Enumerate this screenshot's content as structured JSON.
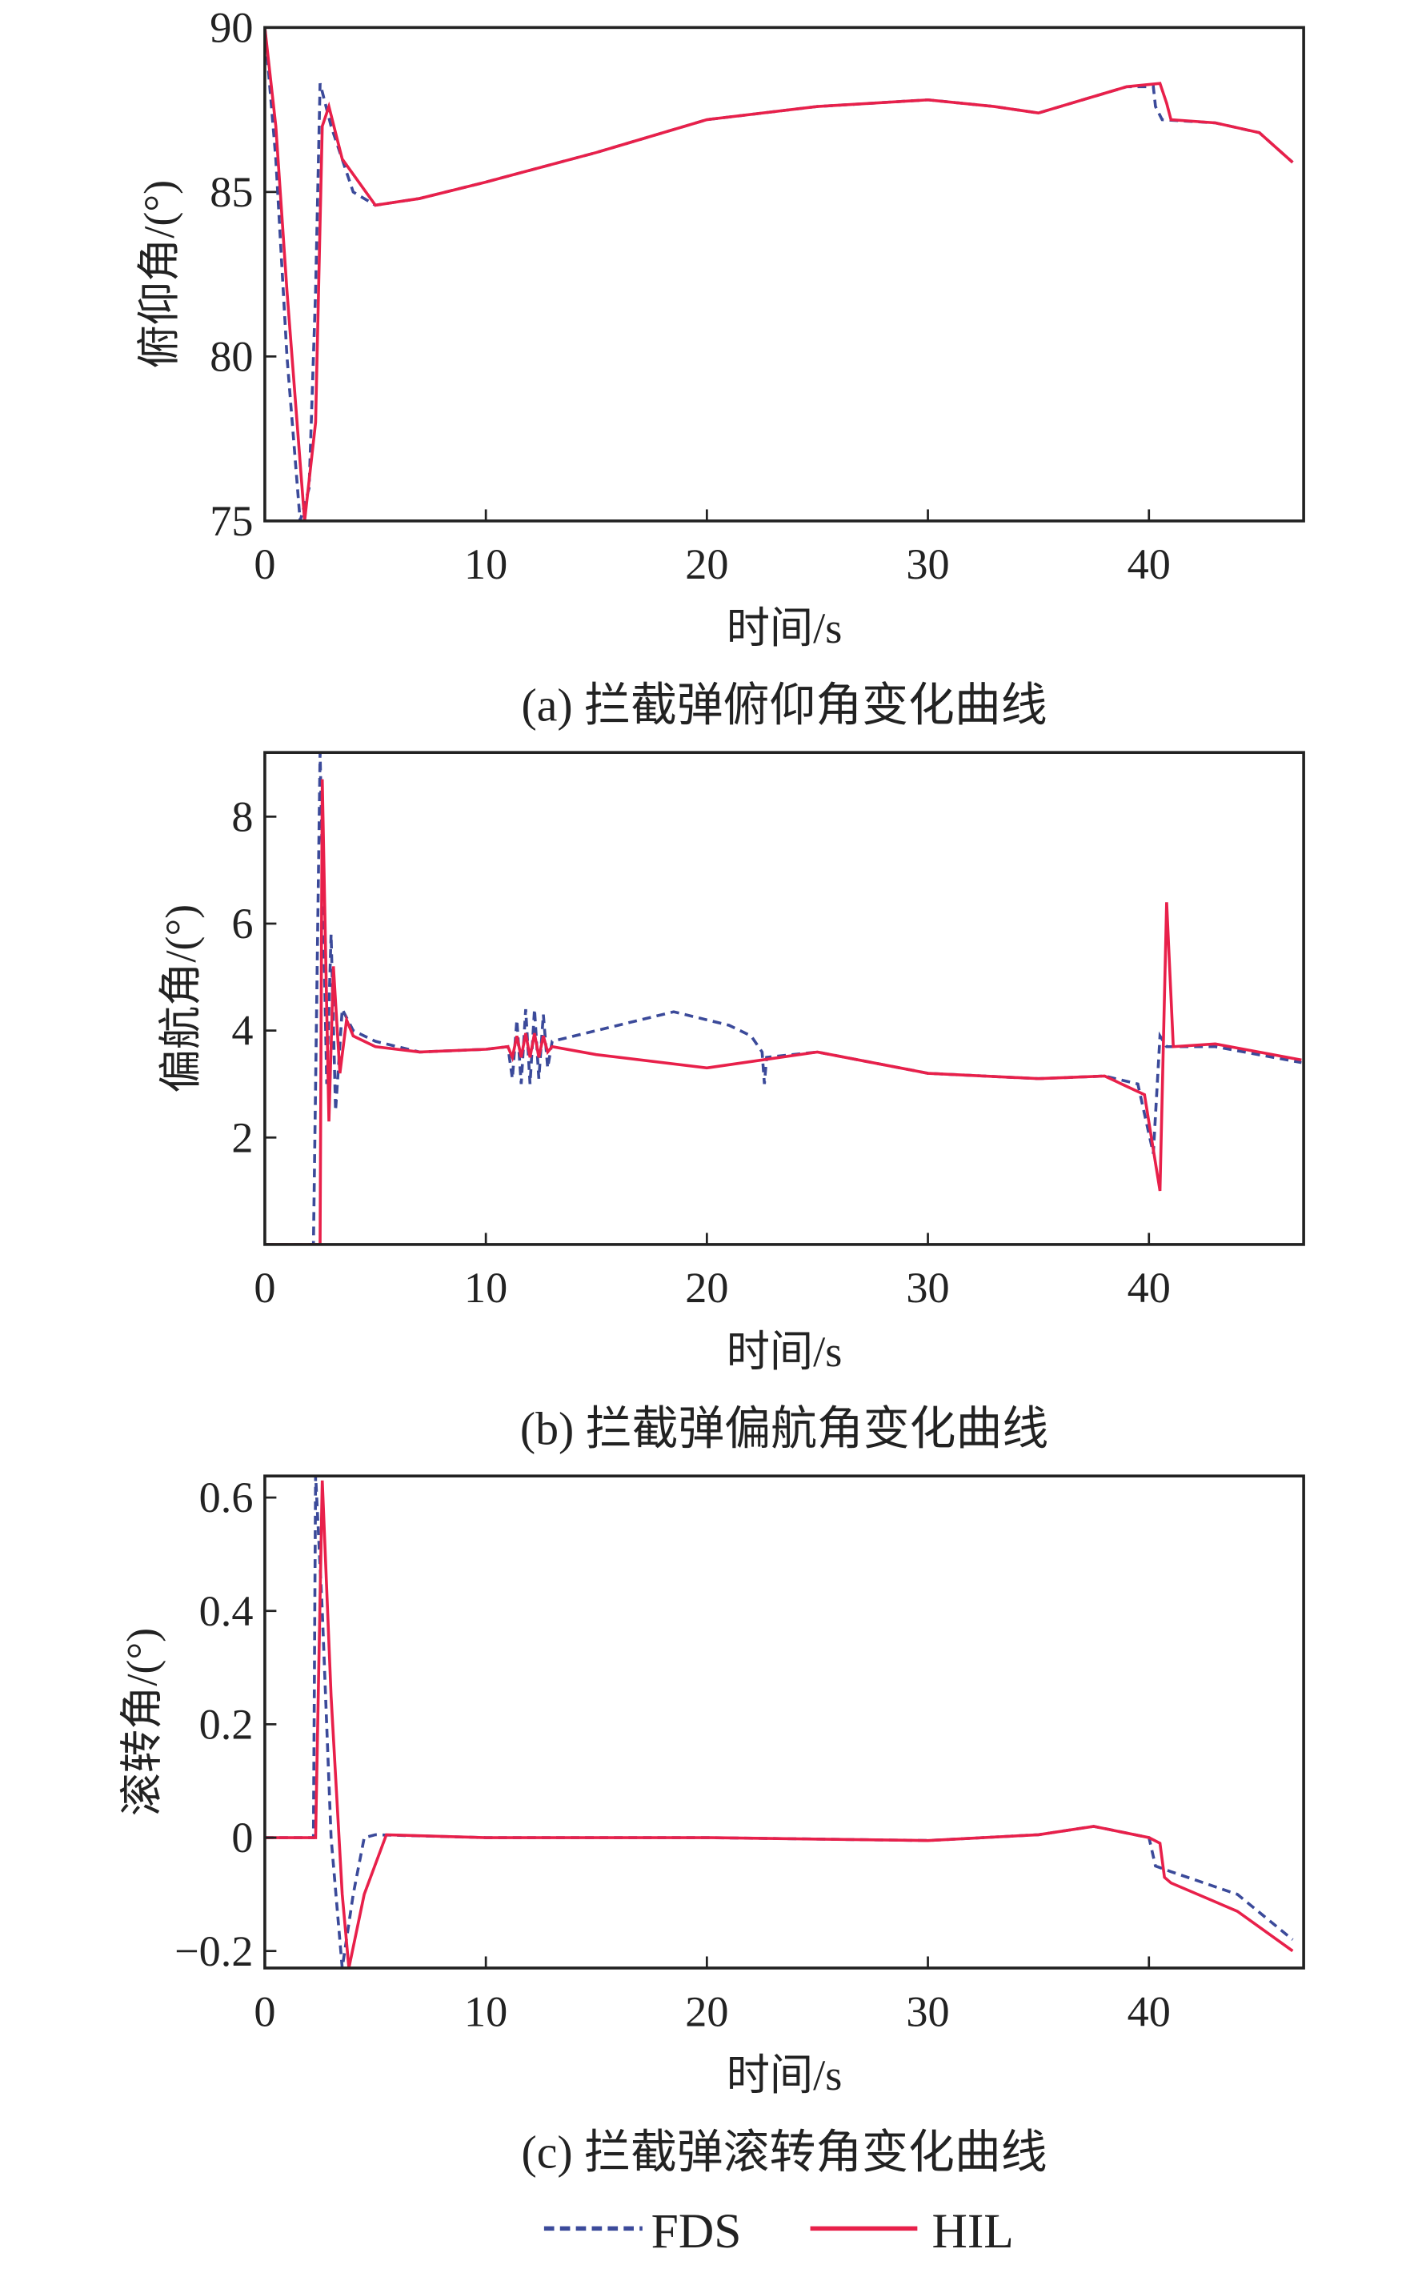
{
  "chart_data": [
    {
      "type": "line",
      "title": "(a) 拦截弹俯仰角变化曲线",
      "xlabel": "时间/s",
      "ylabel": "俯仰角/(°)",
      "xlim": [
        0,
        47
      ],
      "ylim": [
        75,
        90
      ],
      "xticks": [
        0,
        10,
        20,
        30,
        40
      ],
      "yticks": [
        75,
        80,
        85,
        90
      ],
      "series": [
        {
          "name": "FDS",
          "points": [
            [
              0,
              90
            ],
            [
              0.5,
              86
            ],
            [
              1,
              80
            ],
            [
              1.6,
              75
            ],
            [
              2,
              76
            ],
            [
              2.3,
              82
            ],
            [
              2.5,
              88.3
            ],
            [
              3,
              87
            ],
            [
              4,
              85
            ],
            [
              5,
              84.6
            ],
            [
              7,
              84.8
            ],
            [
              10,
              85.3
            ],
            [
              15,
              86.2
            ],
            [
              20,
              87.2
            ],
            [
              25,
              87.6
            ],
            [
              30,
              87.8
            ],
            [
              33,
              87.6
            ],
            [
              35,
              87.4
            ],
            [
              37,
              87.8
            ],
            [
              39,
              88.2
            ],
            [
              40.2,
              88.2
            ],
            [
              40.3,
              87.6
            ],
            [
              40.6,
              87.2
            ],
            [
              43,
              87.1
            ],
            [
              45,
              86.8
            ],
            [
              46.5,
              85.9
            ]
          ]
        },
        {
          "name": "HIL",
          "points": [
            [
              0,
              90
            ],
            [
              0.5,
              87
            ],
            [
              1,
              82
            ],
            [
              1.8,
              75
            ],
            [
              2.3,
              78
            ],
            [
              2.6,
              87
            ],
            [
              2.9,
              87.6
            ],
            [
              3.5,
              86
            ],
            [
              5,
              84.6
            ],
            [
              7,
              84.8
            ],
            [
              10,
              85.3
            ],
            [
              15,
              86.2
            ],
            [
              20,
              87.2
            ],
            [
              25,
              87.6
            ],
            [
              30,
              87.8
            ],
            [
              33,
              87.6
            ],
            [
              35,
              87.4
            ],
            [
              37,
              87.8
            ],
            [
              39,
              88.2
            ],
            [
              40.5,
              88.3
            ],
            [
              40.8,
              87.7
            ],
            [
              41,
              87.2
            ],
            [
              43,
              87.1
            ],
            [
              45,
              86.8
            ],
            [
              46.5,
              85.9
            ]
          ]
        }
      ]
    },
    {
      "type": "line",
      "title": "(b) 拦截弹偏航角变化曲线",
      "xlabel": "时间/s",
      "ylabel": "偏航角/(°)",
      "xlim": [
        0,
        47
      ],
      "ylim": [
        0,
        9.2
      ],
      "xticks": [
        0,
        10,
        20,
        30,
        40
      ],
      "yticks": [
        2,
        4,
        6,
        8
      ],
      "series": [
        {
          "name": "FDS",
          "points": [
            [
              0,
              0
            ],
            [
              2.2,
              0
            ],
            [
              2.5,
              9.2
            ],
            [
              2.8,
              3
            ],
            [
              3,
              5.8
            ],
            [
              3.2,
              2.5
            ],
            [
              3.5,
              4.4
            ],
            [
              4,
              4
            ],
            [
              5,
              3.8
            ],
            [
              7,
              3.6
            ],
            [
              10,
              3.65
            ],
            [
              11,
              3.7
            ],
            [
              11.2,
              3.1
            ],
            [
              11.4,
              4.2
            ],
            [
              11.6,
              3.0
            ],
            [
              11.8,
              4.4
            ],
            [
              12,
              3.0
            ],
            [
              12.2,
              4.4
            ],
            [
              12.4,
              3.1
            ],
            [
              12.6,
              4.3
            ],
            [
              12.8,
              3.3
            ],
            [
              13,
              3.8
            ],
            [
              15,
              4.0
            ],
            [
              18.5,
              4.35
            ],
            [
              21,
              4.1
            ],
            [
              22,
              3.9
            ],
            [
              22.5,
              3.6
            ],
            [
              22.6,
              3.0
            ],
            [
              22.7,
              3.5
            ],
            [
              25,
              3.6
            ],
            [
              30,
              3.2
            ],
            [
              35,
              3.1
            ],
            [
              38,
              3.15
            ],
            [
              39.5,
              3.0
            ],
            [
              40.2,
              1.7
            ],
            [
              40.5,
              3.9
            ],
            [
              40.8,
              3.7
            ],
            [
              43,
              3.7
            ],
            [
              46.9,
              3.4
            ]
          ]
        },
        {
          "name": "HIL",
          "points": [
            [
              0,
              0
            ],
            [
              2.5,
              0
            ],
            [
              2.6,
              8.7
            ],
            [
              2.9,
              2.3
            ],
            [
              3.1,
              5.2
            ],
            [
              3.4,
              3.2
            ],
            [
              3.7,
              4.2
            ],
            [
              4,
              3.9
            ],
            [
              5,
              3.7
            ],
            [
              7,
              3.6
            ],
            [
              10,
              3.65
            ],
            [
              11,
              3.7
            ],
            [
              11.2,
              3.5
            ],
            [
              11.4,
              3.9
            ],
            [
              11.6,
              3.5
            ],
            [
              11.8,
              3.95
            ],
            [
              12,
              3.5
            ],
            [
              12.2,
              3.95
            ],
            [
              12.4,
              3.5
            ],
            [
              12.6,
              3.9
            ],
            [
              12.8,
              3.6
            ],
            [
              13,
              3.7
            ],
            [
              15,
              3.55
            ],
            [
              20,
              3.3
            ],
            [
              25,
              3.6
            ],
            [
              30,
              3.2
            ],
            [
              35,
              3.1
            ],
            [
              38,
              3.15
            ],
            [
              39.8,
              2.8
            ],
            [
              40.5,
              1.0
            ],
            [
              40.8,
              6.4
            ],
            [
              41.1,
              3.7
            ],
            [
              43,
              3.75
            ],
            [
              46.9,
              3.45
            ]
          ]
        }
      ]
    },
    {
      "type": "line",
      "title": "(c) 拦截弹滚转角变化曲线",
      "xlabel": "时间/s",
      "ylabel": "滚转角/(°)",
      "xlim": [
        0,
        47
      ],
      "ylim": [
        -0.23,
        0.638
      ],
      "xticks": [
        0,
        10,
        20,
        30,
        40
      ],
      "yticks": [
        -0.2,
        0,
        0.2,
        0.4,
        0.6
      ],
      "ytick_labels": [
        "−0.2",
        "0",
        "0.2",
        "0.4",
        "0.6"
      ],
      "series": [
        {
          "name": "FDS",
          "points": [
            [
              0,
              0
            ],
            [
              2.2,
              0
            ],
            [
              2.3,
              0.64
            ],
            [
              2.6,
              0.4
            ],
            [
              3,
              0
            ],
            [
              3.5,
              -0.23
            ],
            [
              4,
              -0.1
            ],
            [
              4.5,
              0
            ],
            [
              5,
              0.005
            ],
            [
              10,
              0
            ],
            [
              20,
              0
            ],
            [
              30,
              -0.005
            ],
            [
              35,
              0.005
            ],
            [
              37.5,
              0.02
            ],
            [
              40,
              0
            ],
            [
              40.3,
              -0.05
            ],
            [
              41,
              -0.06
            ],
            [
              44,
              -0.1
            ],
            [
              46.5,
              -0.18
            ]
          ]
        },
        {
          "name": "HIL",
          "points": [
            [
              0,
              0
            ],
            [
              2.3,
              0
            ],
            [
              2.6,
              0.63
            ],
            [
              3,
              0.25
            ],
            [
              3.5,
              -0.1
            ],
            [
              3.8,
              -0.23
            ],
            [
              4.5,
              -0.1
            ],
            [
              5.5,
              0.005
            ],
            [
              10,
              0
            ],
            [
              20,
              0
            ],
            [
              30,
              -0.005
            ],
            [
              35,
              0.005
            ],
            [
              37.5,
              0.02
            ],
            [
              40,
              0
            ],
            [
              40.5,
              -0.01
            ],
            [
              40.7,
              -0.07
            ],
            [
              41,
              -0.08
            ],
            [
              44,
              -0.13
            ],
            [
              46.5,
              -0.2
            ]
          ]
        }
      ]
    }
  ],
  "legend": {
    "placement": "bottom-center",
    "items": [
      {
        "label": "FDS",
        "color": "#3b4a9a",
        "style": "dashed"
      },
      {
        "label": "HIL",
        "color": "#e8204a",
        "style": "solid"
      }
    ]
  }
}
